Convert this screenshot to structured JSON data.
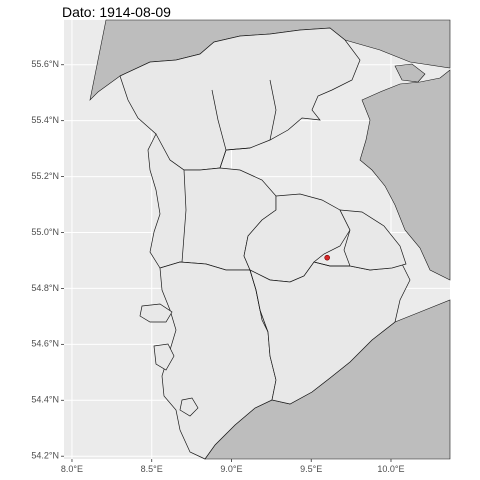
{
  "title": "Dato: 1914-08-09",
  "map": {
    "panel_background": "#ebebeb",
    "grid_color": "#ffffff",
    "land_foreign_color": "#bdbdbd",
    "land_region_color": "#e8e8e8",
    "border_color": "#1a1a1a",
    "marker_color": "#d62728",
    "xlim": [
      7.95,
      10.37
    ],
    "ylim": [
      54.19,
      55.76
    ],
    "y_ticks": [
      {
        "value": 55.6,
        "label": "55.6°N"
      },
      {
        "value": 55.4,
        "label": "55.4°N"
      },
      {
        "value": 55.2,
        "label": "55.2°N"
      },
      {
        "value": 55.0,
        "label": "55.0°N"
      },
      {
        "value": 54.8,
        "label": "54.8°N"
      },
      {
        "value": 54.6,
        "label": "54.6°N"
      },
      {
        "value": 54.4,
        "label": "54.4°N"
      },
      {
        "value": 54.2,
        "label": "54.2°N"
      }
    ],
    "x_ticks": [
      {
        "value": 8.0,
        "label": "8.0°E"
      },
      {
        "value": 8.5,
        "label": "8.5°E"
      },
      {
        "value": 9.0,
        "label": "9.0°E"
      },
      {
        "value": 9.5,
        "label": "9.5°E"
      },
      {
        "value": 10.0,
        "label": "10.0°E"
      }
    ],
    "marker": {
      "lon": 9.6,
      "lat": 54.91
    }
  }
}
